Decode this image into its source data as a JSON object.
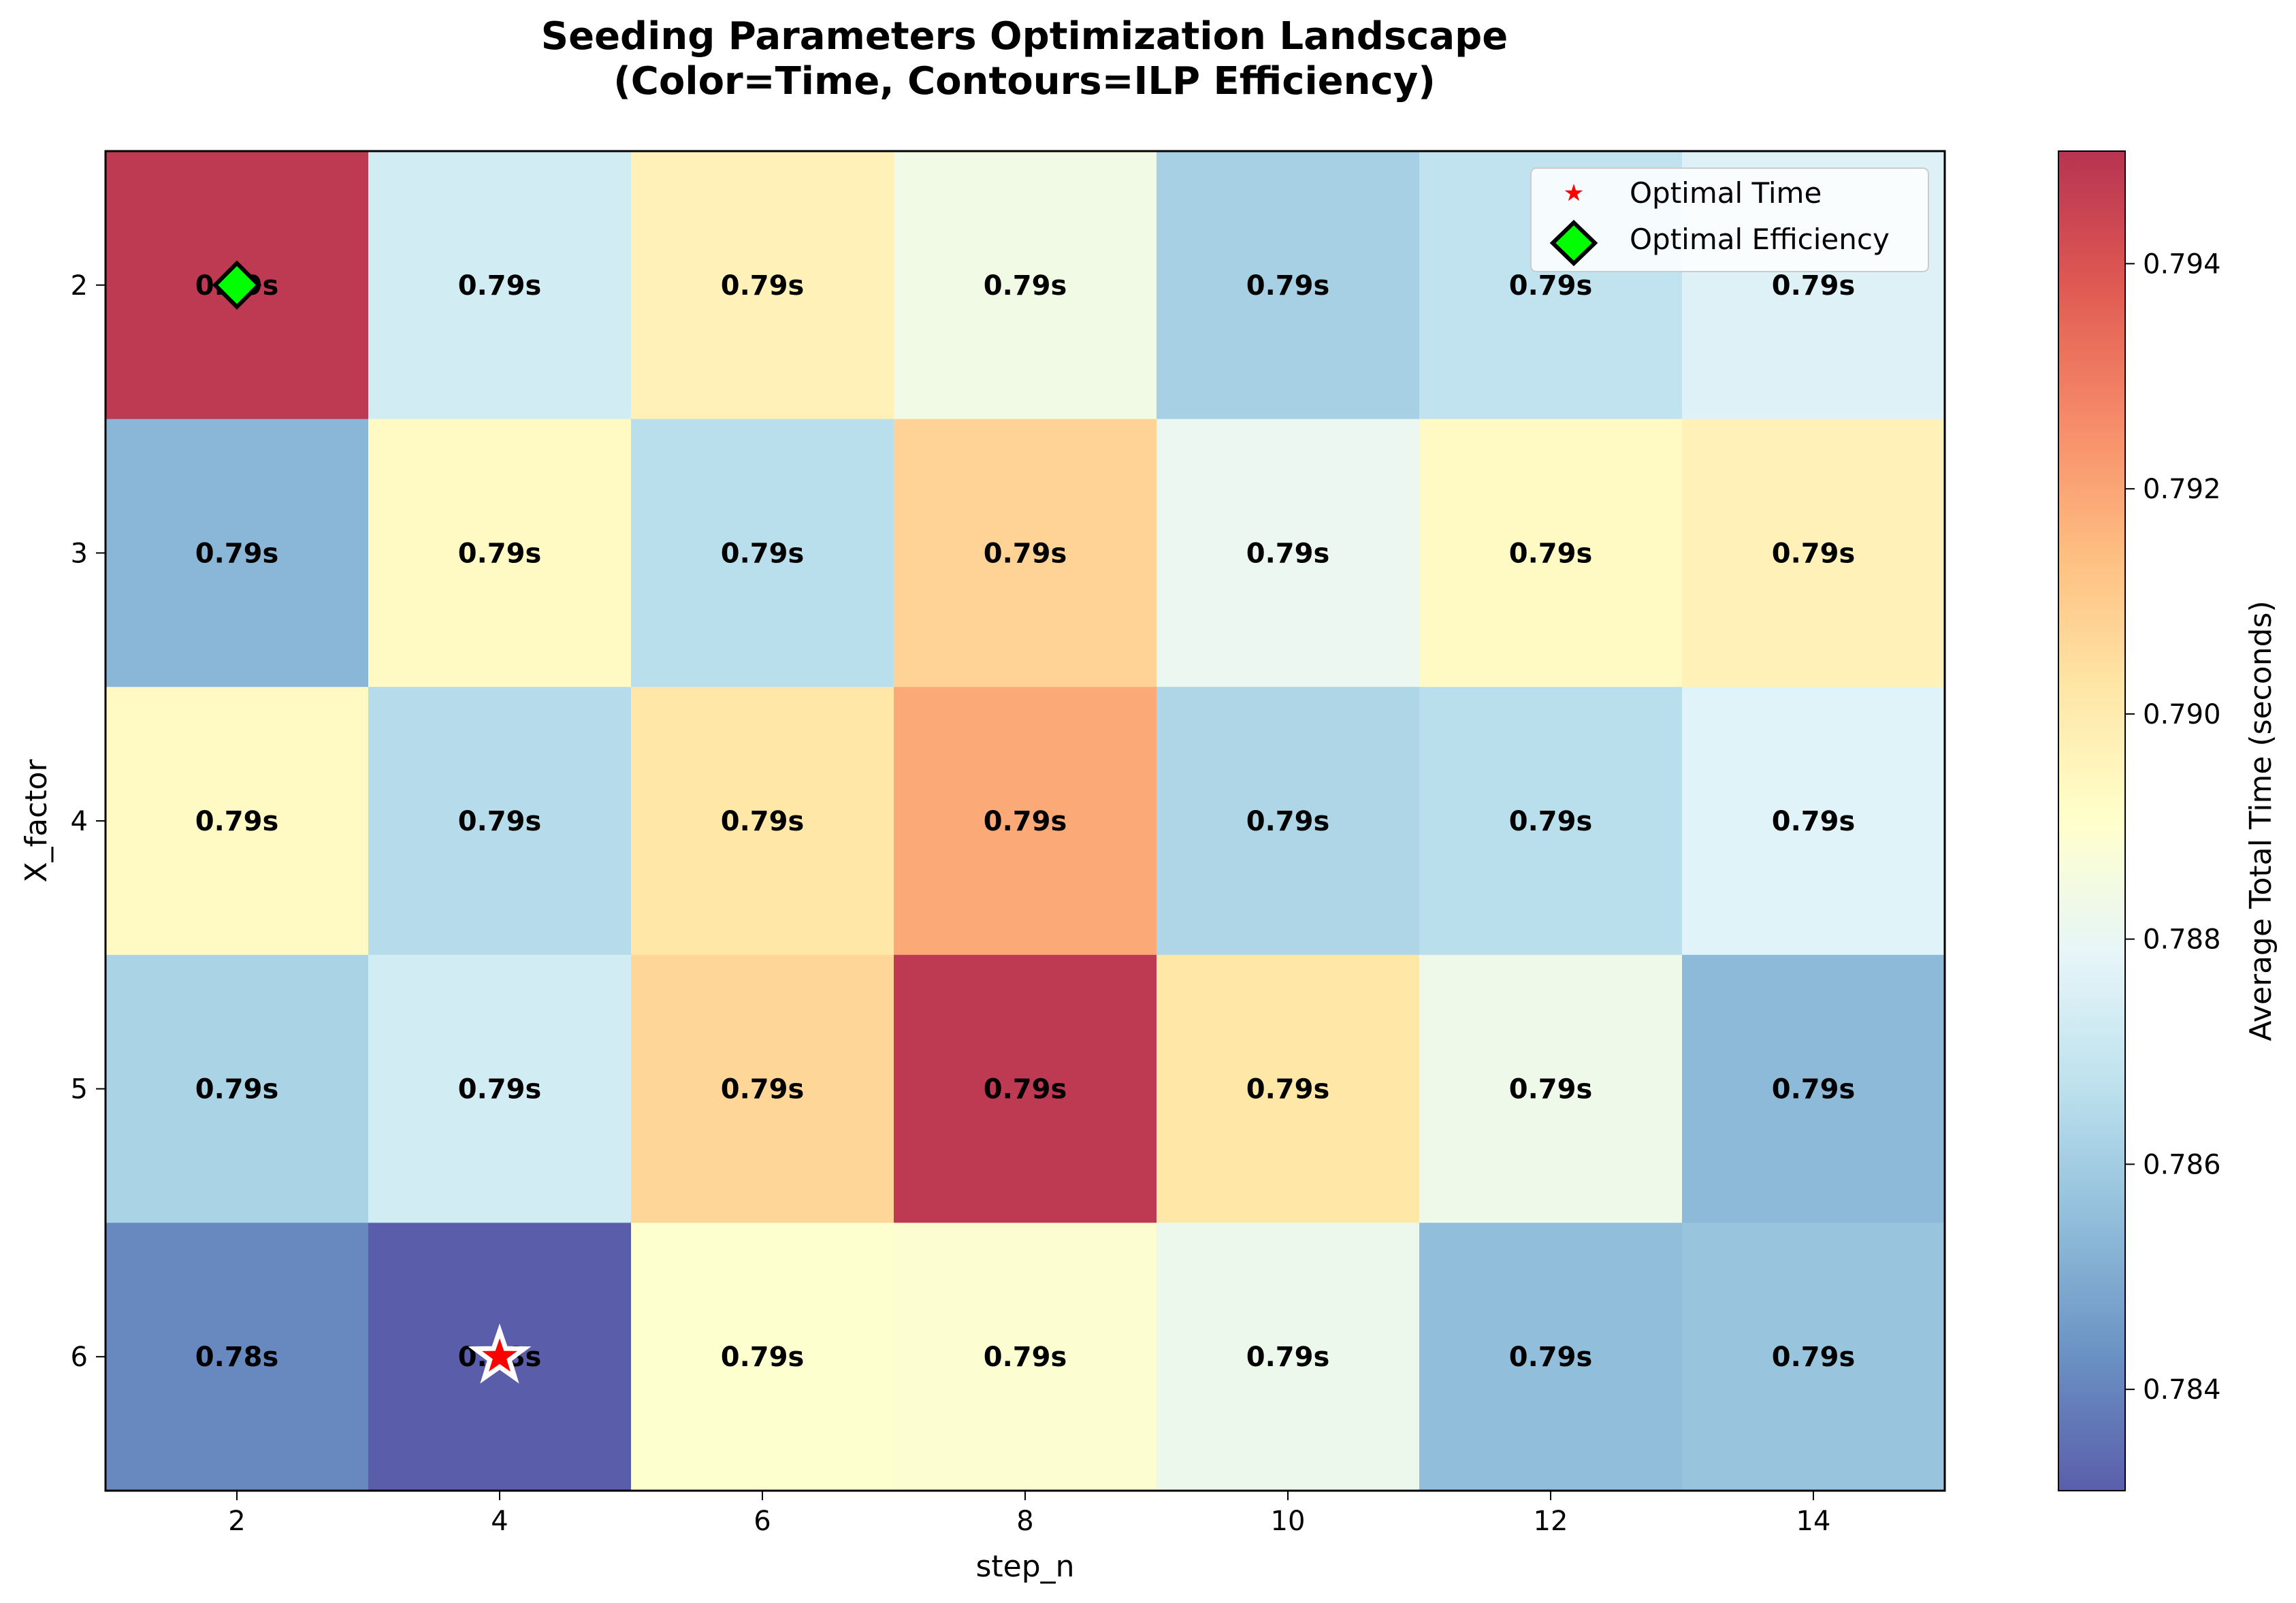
{
  "chart_data": {
    "type": "heatmap",
    "title": [
      "Seeding Parameters Optimization Landscape",
      "(Color=Time, Contours=ILP Efficiency)"
    ],
    "xlabel": "step_n",
    "ylabel": "X_factor",
    "colorbar_label": "Average Total Time (seconds)",
    "colormap": "RdYlBu_r",
    "x": [
      2,
      4,
      6,
      8,
      10,
      12,
      14
    ],
    "y": [
      2,
      3,
      4,
      5,
      6
    ],
    "x_tick_labels": [
      "2",
      "4",
      "6",
      "8",
      "10",
      "12",
      "14"
    ],
    "y_tick_labels": [
      "2",
      "3",
      "4",
      "5",
      "6"
    ],
    "values": [
      [
        0.7948,
        0.7873,
        0.7897,
        0.7884,
        0.7861,
        0.7868,
        0.7876
      ],
      [
        0.7853,
        0.7893,
        0.7866,
        0.7908,
        0.7881,
        0.7893,
        0.7897
      ],
      [
        0.7893,
        0.7865,
        0.7902,
        0.7919,
        0.7863,
        0.7866,
        0.7877
      ],
      [
        0.7862,
        0.7873,
        0.7907,
        0.7948,
        0.7902,
        0.7883,
        0.7854
      ],
      [
        0.7841,
        0.7831,
        0.789,
        0.7889,
        0.7882,
        0.7855,
        0.7857
      ]
    ],
    "cell_labels": [
      [
        "0.79s",
        "0.79s",
        "0.79s",
        "0.79s",
        "0.79s",
        "0.79s",
        "0.79s"
      ],
      [
        "0.79s",
        "0.79s",
        "0.79s",
        "0.79s",
        "0.79s",
        "0.79s",
        "0.79s"
      ],
      [
        "0.79s",
        "0.79s",
        "0.79s",
        "0.79s",
        "0.79s",
        "0.79s",
        "0.79s"
      ],
      [
        "0.79s",
        "0.79s",
        "0.79s",
        "0.79s",
        "0.79s",
        "0.79s",
        "0.79s"
      ],
      [
        "0.78s",
        "0.78s",
        "0.79s",
        "0.79s",
        "0.79s",
        "0.79s",
        "0.79s"
      ]
    ],
    "colorbar_range": [
      0.7831,
      0.795
    ],
    "colorbar_ticks": [
      0.784,
      0.786,
      0.788,
      0.79,
      0.792,
      0.794
    ],
    "colorbar_tick_labels": [
      "0.784",
      "0.786",
      "0.788",
      "0.790",
      "0.792",
      "0.794"
    ],
    "markers": [
      {
        "name": "Optimal Time",
        "x": 4,
        "y": 6,
        "shape": "star",
        "color": "#ff0000"
      },
      {
        "name": "Optimal Efficiency",
        "x": 2,
        "y": 2,
        "shape": "diamond",
        "color": "#00ff00"
      }
    ],
    "legend": {
      "placement": "top-right",
      "entries": [
        "Optimal Time",
        "Optimal Efficiency"
      ]
    },
    "grid": false
  }
}
